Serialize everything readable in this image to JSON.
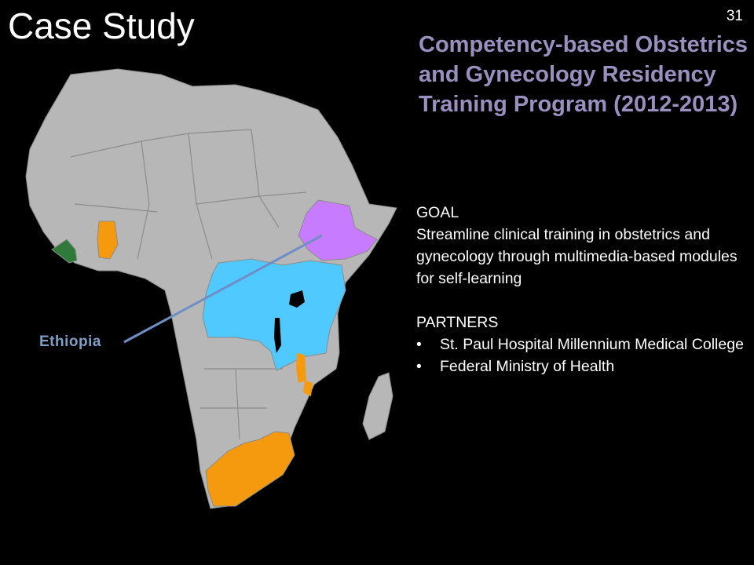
{
  "slide": {
    "title": "Case Study",
    "page_number": "31"
  },
  "map": {
    "label": "Ethiopia",
    "colors": {
      "land": "#b7b7b7",
      "border": "#8c8c8c",
      "ethiopia": "#c77bff",
      "east_africa": "#4fc9ff",
      "highlight": "#f59a0f",
      "liberia": "#2f7a3b",
      "line": "#6f8fc4"
    }
  },
  "content": {
    "heading": "Competency-based Obstetrics and Gynecology Residency Training Program (2012-2013)",
    "goal_label": "GOAL",
    "goal_text": "Streamline clinical training in obstetrics and gynecology through multimedia-based modules for self-learning",
    "partners_label": "PARTNERS",
    "partners": [
      "St. Paul Hospital Millennium Medical College",
      "Federal Ministry of Health"
    ],
    "bullet_glyph": "•"
  }
}
